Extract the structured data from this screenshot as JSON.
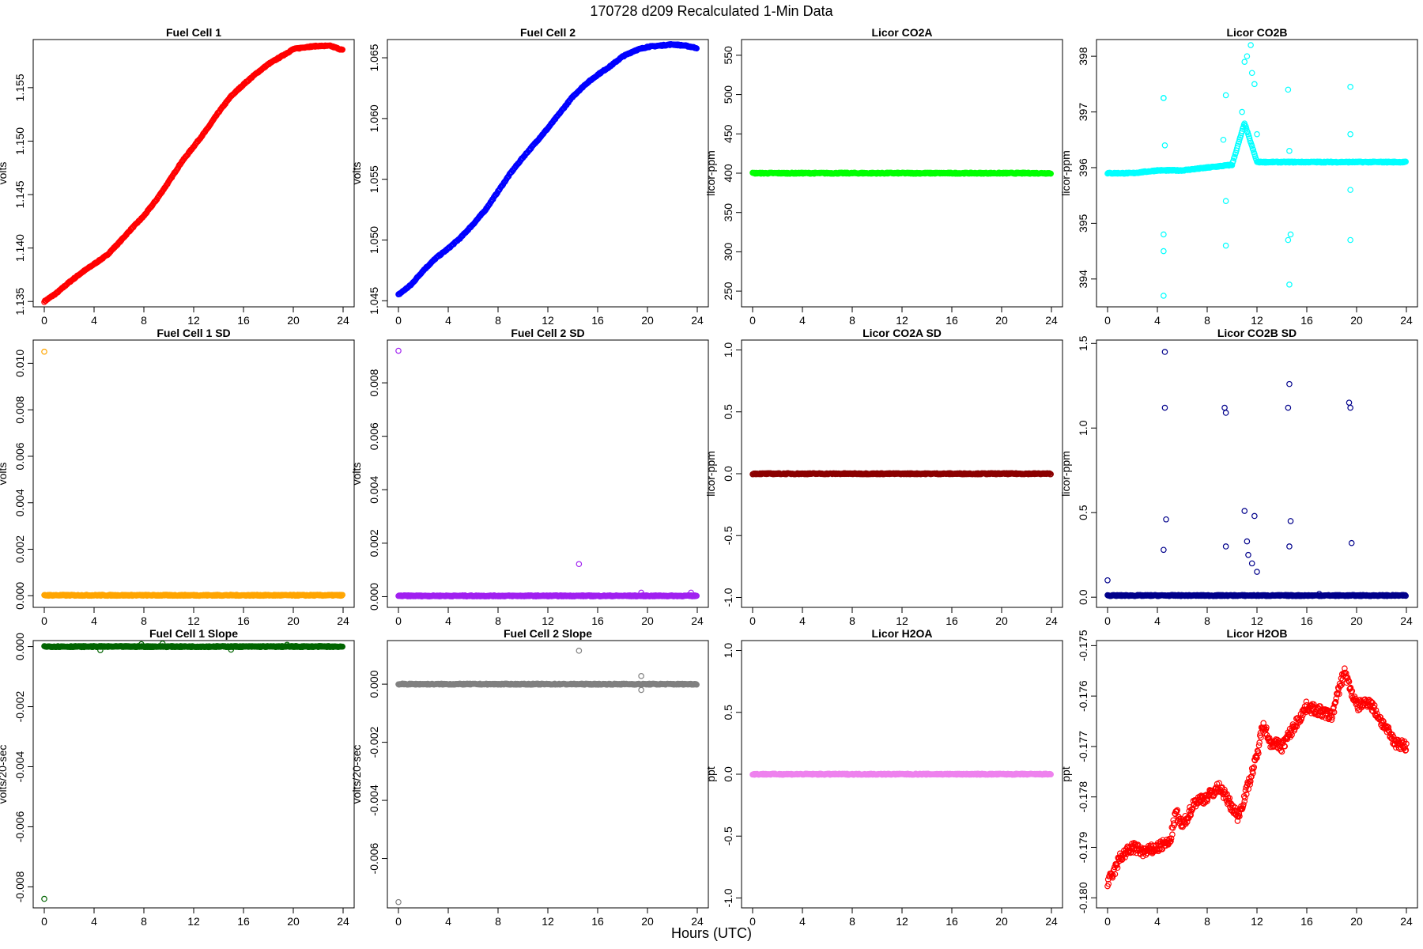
{
  "figure": {
    "title": "170728   d209   Recalculated 1-Min Data",
    "xlabel": "Hours (UTC)"
  },
  "chart_data": [
    {
      "type": "scatter",
      "title": "Fuel Cell 1",
      "ylabel": "volts",
      "xlim": [
        0,
        24
      ],
      "ylim": [
        1.1345,
        1.1595
      ],
      "xticks": [
        "0",
        "4",
        "8",
        "12",
        "16",
        "20",
        "24"
      ],
      "yticks": [
        1.135,
        1.14,
        1.145,
        1.15,
        1.155
      ],
      "ytick_labels": [
        "1.135",
        "1.140",
        "1.145",
        "1.150",
        "1.155"
      ],
      "color": "#ff0000",
      "series": [
        {
          "x": [
            0,
            1,
            2,
            3,
            4,
            5,
            6,
            7,
            8,
            9,
            10,
            11,
            12,
            13,
            14,
            15,
            16,
            17,
            18,
            19,
            20,
            21,
            22,
            23,
            24
          ],
          "y": [
            1.135,
            1.1358,
            1.1368,
            1.1377,
            1.1385,
            1.1393,
            1.1405,
            1.1418,
            1.143,
            1.1445,
            1.1462,
            1.148,
            1.1495,
            1.151,
            1.1527,
            1.1542,
            1.1553,
            1.1563,
            1.1572,
            1.1579,
            1.1586,
            1.1588,
            1.1589,
            1.1589,
            1.1585
          ]
        }
      ]
    },
    {
      "type": "scatter",
      "title": "Fuel Cell 2",
      "ylabel": "volts",
      "xlim": [
        0,
        24
      ],
      "ylim": [
        1.0445,
        1.0665
      ],
      "xticks": [
        "0",
        "4",
        "8",
        "12",
        "16",
        "20",
        "24"
      ],
      "yticks": [
        1.045,
        1.05,
        1.055,
        1.06,
        1.065
      ],
      "ytick_labels": [
        "1.045",
        "1.050",
        "1.055",
        "1.060",
        "1.065"
      ],
      "color": "#0000ff",
      "series": [
        {
          "x": [
            0,
            1,
            2,
            3,
            4,
            5,
            6,
            7,
            8,
            9,
            10,
            11,
            12,
            13,
            14,
            15,
            16,
            17,
            18,
            19,
            20,
            21,
            22,
            23,
            24
          ],
          "y": [
            1.0455,
            1.0463,
            1.0475,
            1.0485,
            1.0493,
            1.0502,
            1.0513,
            1.0525,
            1.054,
            1.0555,
            1.0568,
            1.058,
            1.0592,
            1.0605,
            1.0618,
            1.0628,
            1.0636,
            1.0643,
            1.0651,
            1.0656,
            1.0659,
            1.066,
            1.0661,
            1.066,
            1.0658
          ]
        }
      ]
    },
    {
      "type": "scatter",
      "title": "Licor CO2A",
      "ylabel": "licor-ppm",
      "xlim": [
        0,
        24
      ],
      "ylim": [
        230,
        570
      ],
      "xticks": [
        "0",
        "4",
        "8",
        "12",
        "16",
        "20",
        "24"
      ],
      "yticks": [
        250,
        300,
        350,
        400,
        450,
        500,
        550
      ],
      "ytick_labels": [
        "250",
        "300",
        "350",
        "400",
        "450",
        "500",
        "550"
      ],
      "color": "#00ff00",
      "series": [
        {
          "x": [
            0,
            24
          ],
          "y": [
            400,
            400
          ]
        }
      ]
    },
    {
      "type": "scatter",
      "title": "Licor CO2B",
      "ylabel": "licor-ppm",
      "xlim": [
        0,
        24
      ],
      "ylim": [
        393.5,
        398.3
      ],
      "xticks": [
        "0",
        "4",
        "8",
        "12",
        "16",
        "20",
        "24"
      ],
      "yticks": [
        394,
        395,
        396,
        397,
        398
      ],
      "ytick_labels": [
        "394",
        "395",
        "396",
        "397",
        "398"
      ],
      "color": "#00ffff",
      "series": [
        {
          "x": [
            0,
            2,
            4,
            6,
            8,
            10,
            11,
            12,
            14,
            16,
            18,
            20,
            22,
            24
          ],
          "y": [
            395.9,
            395.9,
            395.95,
            395.95,
            396.0,
            396.05,
            396.8,
            396.1,
            396.1,
            396.1,
            396.1,
            396.1,
            396.1,
            396.1
          ]
        }
      ],
      "outliers": {
        "x": [
          4.5,
          4.5,
          4.5,
          4.5,
          4.5,
          4.6,
          9.5,
          9.5,
          9.5,
          11.2,
          11.5,
          11.8,
          14.5,
          14.5,
          14.6,
          14.6,
          14.7,
          19.5,
          19.5,
          19.5,
          19.5,
          10.8,
          11.0,
          11.6,
          12.0,
          9.3
        ],
        "y": [
          397.25,
          397.25,
          394.5,
          393.7,
          394.8,
          396.4,
          397.3,
          394.6,
          395.4,
          398.0,
          398.2,
          397.5,
          397.4,
          394.7,
          396.3,
          393.9,
          394.8,
          397.45,
          394.7,
          395.6,
          396.6,
          397.0,
          397.9,
          397.7,
          396.6,
          396.5
        ]
      }
    },
    {
      "type": "scatter",
      "title": "Fuel Cell 1 SD",
      "ylabel": "volts",
      "xlim": [
        0,
        24
      ],
      "ylim": [
        -0.0005,
        0.011
      ],
      "xticks": [
        "0",
        "4",
        "8",
        "12",
        "16",
        "20",
        "24"
      ],
      "yticks": [
        0,
        0.002,
        0.004,
        0.006,
        0.008,
        0.01
      ],
      "ytick_labels": [
        "0.000",
        "0.002",
        "0.004",
        "0.006",
        "0.008",
        "0.010"
      ],
      "color": "#ffa500",
      "series": [
        {
          "x": [
            0,
            24
          ],
          "y": [
            2e-05,
            2e-05
          ]
        }
      ],
      "outliers": {
        "x": [
          0
        ],
        "y": [
          0.0105
        ]
      }
    },
    {
      "type": "scatter",
      "title": "Fuel Cell 2 SD",
      "ylabel": "volts",
      "xlim": [
        0,
        24
      ],
      "ylim": [
        -0.0004,
        0.0096
      ],
      "xticks": [
        "0",
        "4",
        "8",
        "12",
        "16",
        "20",
        "24"
      ],
      "yticks": [
        0,
        0.002,
        0.004,
        0.006,
        0.008
      ],
      "ytick_labels": [
        "0.000",
        "0.002",
        "0.004",
        "0.006",
        "0.008"
      ],
      "color": "#a020f0",
      "series": [
        {
          "x": [
            0,
            24
          ],
          "y": [
            3e-05,
            3e-05
          ]
        }
      ],
      "outliers": {
        "x": [
          0,
          14.5,
          19.5,
          23.5
        ],
        "y": [
          0.0092,
          0.00122,
          0.00015,
          0.00015
        ]
      }
    },
    {
      "type": "scatter",
      "title": "Licor CO2A SD",
      "ylabel": "licor-ppm",
      "xlim": [
        0,
        24
      ],
      "ylim": [
        -1.08,
        1.08
      ],
      "xticks": [
        "0",
        "4",
        "8",
        "12",
        "16",
        "20",
        "24"
      ],
      "yticks": [
        -1,
        -0.5,
        0,
        0.5,
        1
      ],
      "ytick_labels": [
        "-1.0",
        "-0.5",
        "0.0",
        "0.5",
        "1.0"
      ],
      "color": "#8b0000",
      "series": [
        {
          "x": [
            0,
            24
          ],
          "y": [
            0,
            0
          ]
        }
      ]
    },
    {
      "type": "scatter",
      "title": "Licor CO2B SD",
      "ylabel": "licor-ppm",
      "xlim": [
        0,
        24
      ],
      "ylim": [
        -0.06,
        1.52
      ],
      "xticks": [
        "0",
        "4",
        "8",
        "12",
        "16",
        "20",
        "24"
      ],
      "yticks": [
        0,
        0.5,
        1,
        1.5
      ],
      "ytick_labels": [
        "0.0",
        "0.5",
        "1.0",
        "1.5"
      ],
      "color": "#00008b",
      "series": [
        {
          "x": [
            0,
            24
          ],
          "y": [
            0.01,
            0.01
          ]
        }
      ],
      "outliers": {
        "x": [
          0,
          4.5,
          4.6,
          4.6,
          4.7,
          9.4,
          9.5,
          9.5,
          11.0,
          11.2,
          11.3,
          11.6,
          11.8,
          12.0,
          14.5,
          14.6,
          14.6,
          14.7,
          19.4,
          19.5,
          19.6,
          17.0
        ],
        "y": [
          0.1,
          0.28,
          1.45,
          1.12,
          0.46,
          1.12,
          1.09,
          0.3,
          0.51,
          0.33,
          0.25,
          0.2,
          0.48,
          0.15,
          1.12,
          1.26,
          0.3,
          0.45,
          1.15,
          1.12,
          0.32,
          0.02
        ]
      }
    },
    {
      "type": "scatter",
      "title": "Fuel Cell 1 Slope",
      "ylabel": "volts/20-sec",
      "xlim": [
        0,
        24
      ],
      "ylim": [
        -0.0087,
        0.0002
      ],
      "xticks": [
        "0",
        "4",
        "8",
        "12",
        "16",
        "20",
        "24"
      ],
      "yticks": [
        -0.008,
        -0.006,
        -0.004,
        -0.002,
        0
      ],
      "ytick_labels": [
        "-0.008",
        "-0.006",
        "-0.004",
        "-0.002",
        "0.000"
      ],
      "color": "#006400",
      "series": [
        {
          "x": [
            0,
            24
          ],
          "y": [
            0,
            0
          ]
        }
      ],
      "outliers": {
        "x": [
          0,
          7.8,
          9.5,
          19.5,
          4.5,
          15
        ],
        "y": [
          -0.0084,
          8e-05,
          0.0001,
          6e-05,
          -0.00012,
          -0.0001
        ]
      }
    },
    {
      "type": "scatter",
      "title": "Fuel Cell 2 Slope",
      "ylabel": "volts/20-sec",
      "xlim": [
        0,
        24
      ],
      "ylim": [
        -0.0077,
        0.0015
      ],
      "xticks": [
        "0",
        "4",
        "8",
        "12",
        "16",
        "20",
        "24"
      ],
      "yticks": [
        -0.006,
        -0.004,
        -0.002,
        0
      ],
      "ytick_labels": [
        "-0.006",
        "-0.004",
        "-0.002",
        "0.000"
      ],
      "color": "#808080",
      "series": [
        {
          "x": [
            0,
            24
          ],
          "y": [
            0,
            0
          ]
        }
      ],
      "outliers": {
        "x": [
          0,
          14.5,
          19.5,
          19.5
        ],
        "y": [
          -0.0075,
          0.00115,
          0.00028,
          -0.0002
        ]
      }
    },
    {
      "type": "scatter",
      "title": "Licor H2OA",
      "ylabel": "ppt",
      "xlim": [
        0,
        24
      ],
      "ylim": [
        -1.08,
        1.08
      ],
      "xticks": [
        "0",
        "4",
        "8",
        "12",
        "16",
        "20",
        "24"
      ],
      "yticks": [
        -1,
        -0.5,
        0,
        0.5,
        1
      ],
      "ytick_labels": [
        "-1.0",
        "-0.5",
        "0.0",
        "0.5",
        "1.0"
      ],
      "color": "#ee82ee",
      "series": [
        {
          "x": [
            0,
            24
          ],
          "y": [
            0,
            0
          ]
        }
      ]
    },
    {
      "type": "scatter",
      "title": "Licor H2OB",
      "ylabel": "ppt",
      "xlim": [
        0,
        24
      ],
      "ylim": [
        -0.1802,
        -0.1749
      ],
      "xticks": [
        "0",
        "4",
        "8",
        "12",
        "16",
        "20",
        "24"
      ],
      "yticks": [
        -0.18,
        -0.179,
        -0.178,
        -0.177,
        -0.176,
        -0.175
      ],
      "ytick_labels": [
        "-0.180",
        "-0.179",
        "-0.178",
        "-0.177",
        "-0.176",
        "-0.175"
      ],
      "color": "#ff0000",
      "series": [
        {
          "x": [
            0,
            0.5,
            1,
            2,
            3,
            4,
            5,
            5.5,
            6,
            7,
            8,
            9,
            10,
            10.5,
            11,
            12,
            12.5,
            13,
            14,
            15,
            16,
            17,
            18,
            19,
            20,
            21,
            22,
            22.5,
            23,
            24
          ],
          "y": [
            -0.1797,
            -0.1795,
            -0.1792,
            -0.179,
            -0.1791,
            -0.179,
            -0.1789,
            -0.1783,
            -0.1786,
            -0.1781,
            -0.178,
            -0.1778,
            -0.1782,
            -0.1784,
            -0.178,
            -0.1772,
            -0.1765,
            -0.1769,
            -0.177,
            -0.1766,
            -0.1762,
            -0.1763,
            -0.1764,
            -0.1755,
            -0.1762,
            -0.1761,
            -0.1765,
            -0.1767,
            -0.1769,
            -0.177
          ]
        }
      ]
    }
  ]
}
